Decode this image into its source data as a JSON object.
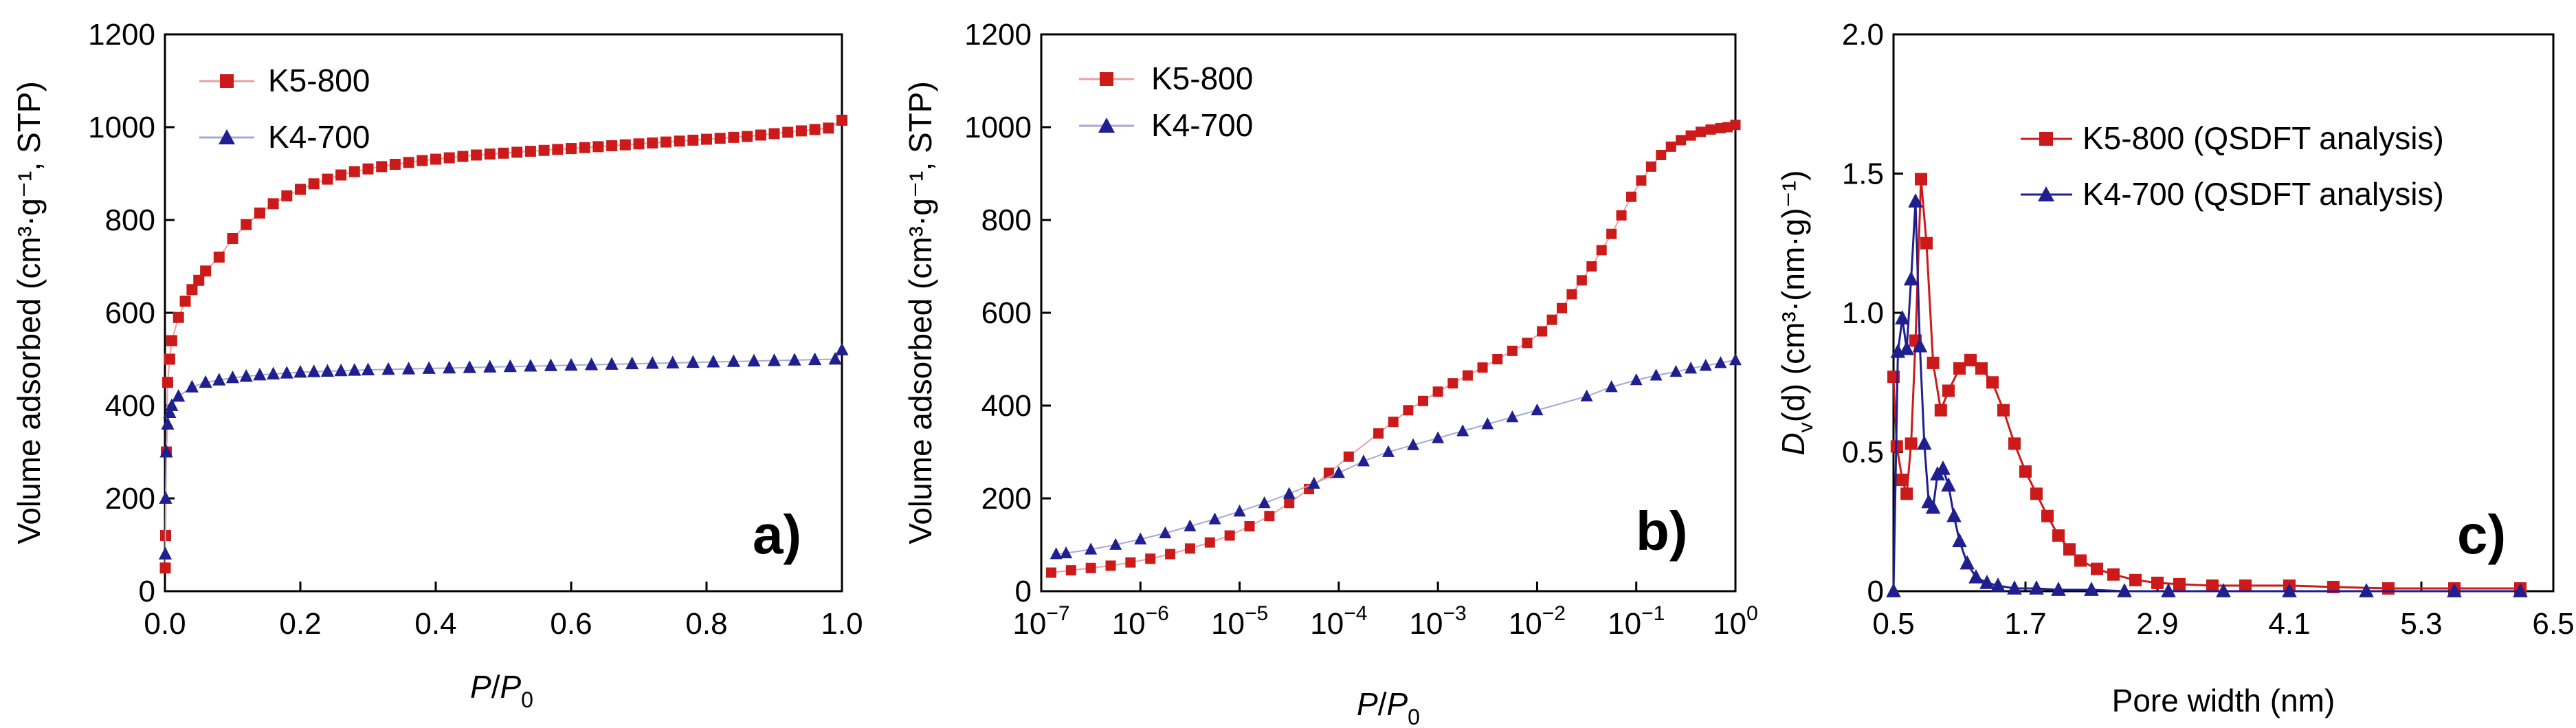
{
  "chart_data": [
    {
      "id": "a",
      "type": "scatter",
      "panel_label": "a)",
      "xlabel_main": "P",
      "xlabel_sub": "0",
      "xlabel_sep": "/",
      "ylabel": "Volume adsorbed (cm³·g⁻¹, STP)",
      "xlim": [
        0,
        1.0
      ],
      "ylim": [
        0,
        1200
      ],
      "xticks": [
        "0.0",
        "0.2",
        "0.4",
        "0.6",
        "0.8",
        "1.0"
      ],
      "xtick_values": [
        0,
        0.2,
        0.4,
        0.6,
        0.8,
        1.0
      ],
      "yticks": [
        "0",
        "200",
        "400",
        "600",
        "800",
        "1000",
        "1200"
      ],
      "ytick_values": [
        0,
        200,
        400,
        600,
        800,
        1000,
        1200
      ],
      "legend_position": "top-left",
      "series": [
        {
          "name": "K5-800",
          "marker": "square",
          "color": "#cc1a1a",
          "x": [
            0.0005,
            0.001,
            0.002,
            0.004,
            0.007,
            0.01,
            0.02,
            0.03,
            0.04,
            0.05,
            0.06,
            0.08,
            0.1,
            0.12,
            0.14,
            0.16,
            0.18,
            0.2,
            0.22,
            0.24,
            0.26,
            0.28,
            0.3,
            0.32,
            0.34,
            0.36,
            0.38,
            0.4,
            0.42,
            0.44,
            0.46,
            0.48,
            0.5,
            0.52,
            0.54,
            0.56,
            0.58,
            0.6,
            0.62,
            0.64,
            0.66,
            0.68,
            0.7,
            0.72,
            0.74,
            0.76,
            0.78,
            0.8,
            0.82,
            0.84,
            0.86,
            0.88,
            0.9,
            0.92,
            0.94,
            0.96,
            0.98,
            1.0
          ],
          "y": [
            50,
            120,
            300,
            450,
            500,
            540,
            590,
            625,
            650,
            670,
            690,
            720,
            760,
            790,
            815,
            835,
            852,
            866,
            878,
            888,
            897,
            904,
            910,
            915,
            920,
            924,
            928,
            931,
            934,
            937,
            940,
            942,
            944,
            946,
            948,
            950,
            952,
            954,
            956,
            958,
            960,
            962,
            964,
            966,
            968,
            970,
            972,
            974,
            976,
            978,
            980,
            983,
            986,
            989,
            992,
            995,
            998,
            1015
          ]
        },
        {
          "name": "K4-700",
          "marker": "triangle",
          "color": "#1f1f8f",
          "x": [
            0.0005,
            0.001,
            0.002,
            0.004,
            0.007,
            0.01,
            0.02,
            0.04,
            0.06,
            0.08,
            0.1,
            0.12,
            0.14,
            0.16,
            0.18,
            0.2,
            0.22,
            0.24,
            0.26,
            0.28,
            0.3,
            0.33,
            0.36,
            0.39,
            0.42,
            0.45,
            0.48,
            0.51,
            0.54,
            0.57,
            0.6,
            0.63,
            0.66,
            0.69,
            0.72,
            0.75,
            0.78,
            0.81,
            0.84,
            0.87,
            0.9,
            0.93,
            0.96,
            0.99,
            1.0
          ],
          "y": [
            80,
            200,
            300,
            360,
            385,
            400,
            420,
            440,
            450,
            455,
            460,
            463,
            466,
            468,
            470,
            472,
            473,
            474,
            475,
            476,
            477,
            478,
            479,
            480,
            481,
            482,
            483,
            484,
            485,
            486,
            487,
            488,
            489,
            490,
            491,
            492,
            493,
            494,
            495,
            496,
            497,
            498,
            499,
            500,
            520
          ]
        }
      ]
    },
    {
      "id": "b",
      "type": "scatter",
      "panel_label": "b)",
      "xscale": "log",
      "xlabel_main": "P",
      "xlabel_sub": "0",
      "xlabel_sep": "/",
      "ylabel": "Volume adsorbed (cm³·g⁻¹, STP)",
      "xlim_exp": [
        -7,
        0
      ],
      "ylim": [
        0,
        1200
      ],
      "xticks": [
        {
          "base": "10",
          "exp": "-7"
        },
        {
          "base": "10",
          "exp": "-6"
        },
        {
          "base": "10",
          "exp": "-5"
        },
        {
          "base": "10",
          "exp": "-4"
        },
        {
          "base": "10",
          "exp": "-3"
        },
        {
          "base": "10",
          "exp": "-2"
        },
        {
          "base": "10",
          "exp": "-1"
        },
        {
          "base": "10",
          "exp": "0"
        }
      ],
      "yticks": [
        "0",
        "200",
        "400",
        "600",
        "800",
        "1000",
        "1200"
      ],
      "ytick_values": [
        0,
        200,
        400,
        600,
        800,
        1000,
        1200
      ],
      "legend_position": "top-left",
      "series": [
        {
          "name": "K5-800",
          "marker": "square",
          "color": "#cc1a1a",
          "logx": [
            -6.9,
            -6.7,
            -6.5,
            -6.3,
            -6.1,
            -5.9,
            -5.7,
            -5.5,
            -5.3,
            -5.1,
            -4.9,
            -4.7,
            -4.5,
            -4.3,
            -4.1,
            -3.9,
            -3.6,
            -3.45,
            -3.3,
            -3.15,
            -3.0,
            -2.85,
            -2.7,
            -2.55,
            -2.4,
            -2.25,
            -2.1,
            -1.95,
            -1.85,
            -1.75,
            -1.65,
            -1.55,
            -1.45,
            -1.35,
            -1.25,
            -1.15,
            -1.05,
            -0.95,
            -0.85,
            -0.75,
            -0.65,
            -0.55,
            -0.45,
            -0.35,
            -0.25,
            -0.15,
            -0.08,
            0.0
          ],
          "y": [
            40,
            45,
            50,
            55,
            62,
            70,
            80,
            92,
            105,
            120,
            140,
            162,
            190,
            220,
            255,
            290,
            340,
            365,
            390,
            410,
            430,
            448,
            465,
            482,
            500,
            518,
            535,
            560,
            585,
            610,
            640,
            670,
            700,
            735,
            770,
            810,
            850,
            885,
            915,
            940,
            958,
            972,
            982,
            990,
            995,
            998,
            1000,
            1005
          ]
        },
        {
          "name": "K4-700",
          "marker": "triangle",
          "color": "#1f1f8f",
          "logx": [
            -6.85,
            -6.75,
            -6.5,
            -6.25,
            -6.0,
            -5.75,
            -5.5,
            -5.25,
            -5.0,
            -4.75,
            -4.5,
            -4.25,
            -4.0,
            -3.75,
            -3.5,
            -3.25,
            -3.0,
            -2.75,
            -2.5,
            -2.25,
            -2.0,
            -1.5,
            -1.25,
            -1.0,
            -0.8,
            -0.6,
            -0.45,
            -0.3,
            -0.15,
            0.0
          ],
          "y": [
            80,
            82,
            90,
            100,
            112,
            125,
            140,
            155,
            172,
            190,
            210,
            232,
            255,
            280,
            300,
            315,
            330,
            345,
            360,
            375,
            390,
            420,
            440,
            455,
            465,
            473,
            480,
            486,
            492,
            498
          ]
        }
      ]
    },
    {
      "id": "c",
      "type": "line",
      "panel_label": "c)",
      "xlabel": "Pore width (nm)",
      "ylabel_main": "D",
      "ylabel_sub": "v",
      "ylabel_rest": "(d) (cm³·(nm·g)⁻¹)",
      "xlim": [
        0.5,
        6.5
      ],
      "ylim": [
        0,
        2.0
      ],
      "xticks": [
        "0.5",
        "1.7",
        "2.9",
        "4.1",
        "5.3",
        "6.5"
      ],
      "xtick_values": [
        0.5,
        1.7,
        2.9,
        4.1,
        5.3,
        6.5
      ],
      "yticks": [
        "0",
        "0.5",
        "1.0",
        "1.5",
        "2.0"
      ],
      "ytick_values": [
        0,
        0.5,
        1.0,
        1.5,
        2.0
      ],
      "legend_position": "top-right",
      "series": [
        {
          "name": "K5-800 (QSDFT analysis)",
          "marker": "square",
          "color": "#cc1a1a",
          "x": [
            0.5,
            0.53,
            0.58,
            0.62,
            0.66,
            0.7,
            0.75,
            0.8,
            0.86,
            0.93,
            1.0,
            1.1,
            1.2,
            1.3,
            1.4,
            1.5,
            1.6,
            1.7,
            1.8,
            1.9,
            2.0,
            2.1,
            2.2,
            2.35,
            2.5,
            2.7,
            2.9,
            3.1,
            3.4,
            3.7,
            4.1,
            4.5,
            5.0,
            5.6,
            6.2
          ],
          "y": [
            0.77,
            0.52,
            0.4,
            0.35,
            0.53,
            0.9,
            1.48,
            1.25,
            0.82,
            0.65,
            0.72,
            0.8,
            0.83,
            0.8,
            0.75,
            0.65,
            0.53,
            0.43,
            0.35,
            0.27,
            0.2,
            0.15,
            0.11,
            0.08,
            0.06,
            0.04,
            0.03,
            0.025,
            0.02,
            0.02,
            0.02,
            0.015,
            0.01,
            0.01,
            0.01
          ]
        },
        {
          "name": "K4-700 (QSDFT analysis)",
          "marker": "triangle",
          "color": "#1f1f8f",
          "x": [
            0.5,
            0.54,
            0.58,
            0.62,
            0.66,
            0.7,
            0.74,
            0.78,
            0.82,
            0.86,
            0.9,
            0.95,
            1.0,
            1.05,
            1.1,
            1.17,
            1.25,
            1.35,
            1.45,
            1.6,
            1.8,
            2.0,
            2.3,
            2.6,
            3.0,
            3.5,
            4.1,
            4.8,
            5.6,
            6.2
          ],
          "y": [
            0.0,
            0.86,
            0.98,
            0.87,
            1.12,
            1.4,
            0.88,
            0.53,
            0.32,
            0.3,
            0.42,
            0.44,
            0.38,
            0.27,
            0.18,
            0.1,
            0.05,
            0.03,
            0.02,
            0.01,
            0.01,
            0.005,
            0.005,
            0.0,
            0.0,
            0.0,
            0.0,
            0.0,
            0.0,
            0.0
          ]
        }
      ]
    }
  ]
}
